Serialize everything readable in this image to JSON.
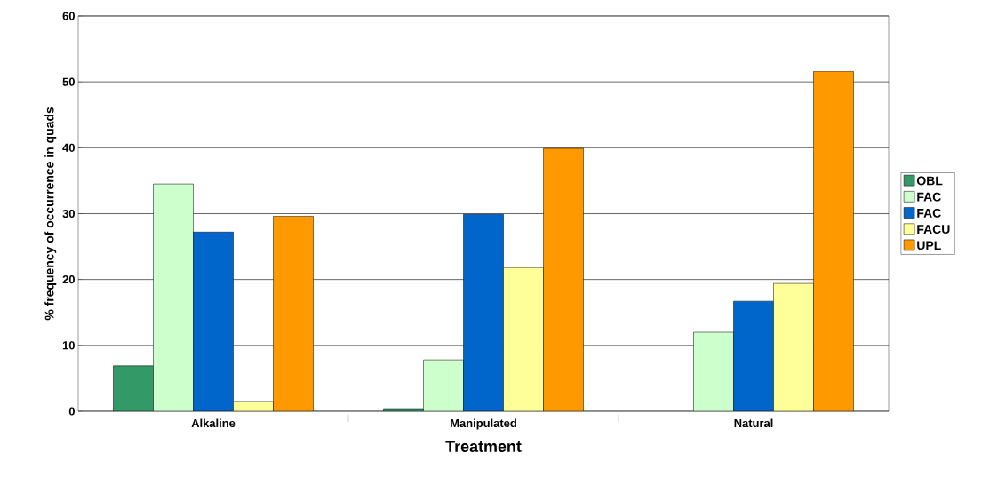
{
  "chart_data": {
    "type": "bar",
    "xlabel": "Treatment",
    "ylabel": "% frequency of occurrence in quads",
    "categories": [
      "Alkaline",
      "Manipulated",
      "Natural"
    ],
    "series": [
      {
        "name": "OBL",
        "color": "#339966",
        "values": [
          6.9,
          0.4,
          null
        ]
      },
      {
        "name": "FAC",
        "color": "#ccffcc",
        "values": [
          34.5,
          7.8,
          12.0
        ]
      },
      {
        "name": "FAC",
        "color": "#0066cc",
        "values": [
          27.2,
          29.9,
          16.7
        ]
      },
      {
        "name": "FACU",
        "color": "#ffff99",
        "values": [
          1.5,
          21.8,
          19.4
        ]
      },
      {
        "name": "UPL",
        "color": "#ff9900",
        "values": [
          29.6,
          39.9,
          51.6
        ]
      }
    ],
    "ylim": [
      0,
      60
    ],
    "yticks": [
      0,
      10,
      20,
      30,
      40,
      50,
      60
    ],
    "grid": "y",
    "legend": "right"
  }
}
